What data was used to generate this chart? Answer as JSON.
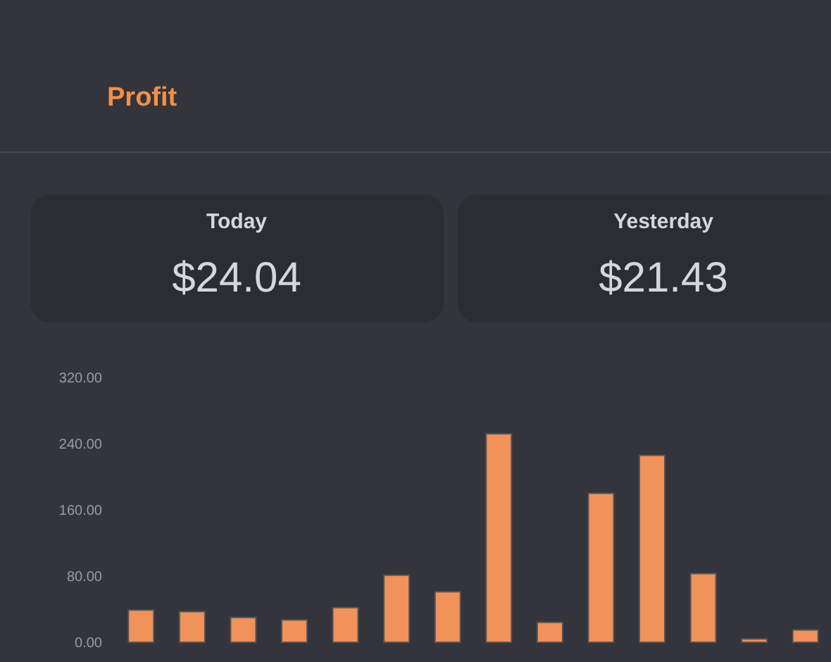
{
  "chart_data": {
    "type": "bar",
    "title": "Profit",
    "annotations": [
      "Today",
      "$24.04",
      "Yesterday",
      "$21.43"
    ],
    "categories": [
      null,
      null,
      null,
      null,
      null,
      null,
      null,
      null,
      null,
      null,
      null,
      null,
      null,
      null
    ],
    "series": [
      {
        "color": "#f0925a",
        "values": [
          39,
          37,
          30,
          27,
          42,
          81,
          61,
          252,
          24,
          180,
          226,
          83,
          4,
          15
        ]
      }
    ],
    "ylim": [
      0,
      320
    ],
    "yticks": [
      {
        "value": 0,
        "label": "0.00"
      },
      {
        "value": 80,
        "label": "80.00"
      },
      {
        "value": 160,
        "label": "160.00"
      },
      {
        "value": 240,
        "label": "240.00"
      },
      {
        "value": 320,
        "label": "320.00"
      }
    ],
    "tick_labels": "y",
    "grid": false
  }
}
